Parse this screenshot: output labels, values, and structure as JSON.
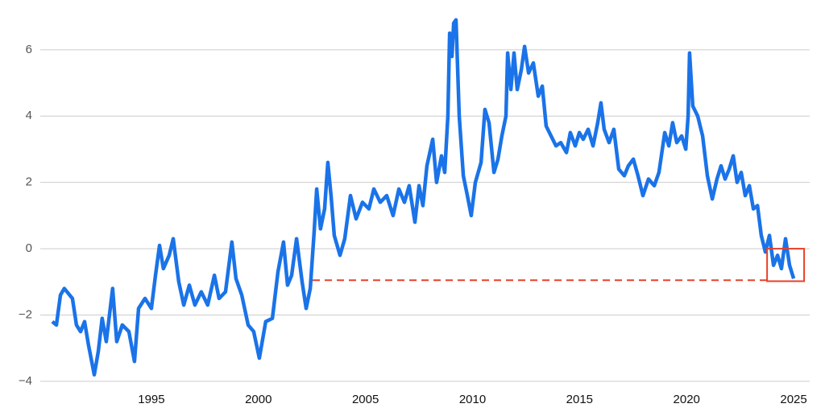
{
  "chart_data": {
    "type": "line",
    "x": [
      1990.37,
      1990.56,
      1990.75,
      1990.93,
      1991.31,
      1991.5,
      1991.69,
      1991.88,
      1992.06,
      1992.33,
      1992.52,
      1992.7,
      1992.89,
      1993.19,
      1993.38,
      1993.64,
      1993.95,
      1994.21,
      1994.4,
      1994.7,
      1995.0,
      1995.19,
      1995.38,
      1995.56,
      1995.83,
      1996.02,
      1996.28,
      1996.51,
      1996.77,
      1997.03,
      1997.33,
      1997.63,
      1997.94,
      1998.16,
      1998.46,
      1998.76,
      1998.95,
      1999.22,
      1999.52,
      1999.78,
      2000.04,
      2000.34,
      2000.65,
      2000.91,
      2001.17,
      2001.36,
      2001.55,
      2001.78,
      2002.04,
      2002.23,
      2002.42,
      2002.6,
      2002.72,
      2002.9,
      2003.09,
      2003.24,
      2003.39,
      2003.54,
      2003.81,
      2004.03,
      2004.3,
      2004.56,
      2004.86,
      2005.16,
      2005.39,
      2005.69,
      2005.99,
      2006.29,
      2006.56,
      2006.82,
      2007.04,
      2007.31,
      2007.5,
      2007.68,
      2007.87,
      2008.14,
      2008.32,
      2008.55,
      2008.7,
      2008.85,
      2008.93,
      2009.04,
      2009.12,
      2009.23,
      2009.38,
      2009.57,
      2009.76,
      2009.94,
      2010.13,
      2010.4,
      2010.58,
      2010.77,
      2011.0,
      2011.19,
      2011.37,
      2011.56,
      2011.64,
      2011.79,
      2011.94,
      2012.09,
      2012.28,
      2012.43,
      2012.62,
      2012.84,
      2013.07,
      2013.26,
      2013.44,
      2013.67,
      2013.9,
      2014.12,
      2014.39,
      2014.57,
      2014.8,
      2014.99,
      2015.17,
      2015.4,
      2015.63,
      2015.85,
      2016.0,
      2016.15,
      2016.38,
      2016.6,
      2016.83,
      2017.09,
      2017.28,
      2017.51,
      2017.73,
      2017.96,
      2018.22,
      2018.49,
      2018.71,
      2018.98,
      2019.17,
      2019.35,
      2019.54,
      2019.77,
      2019.96,
      2020.07,
      2020.14,
      2020.29,
      2020.52,
      2020.75,
      2020.97,
      2021.2,
      2021.42,
      2021.61,
      2021.8,
      2021.99,
      2022.18,
      2022.36,
      2022.55,
      2022.74,
      2022.93,
      2023.12,
      2023.31,
      2023.49,
      2023.68,
      2023.87,
      2024.06,
      2024.25,
      2024.43,
      2024.62,
      2024.81,
      2025.0
    ],
    "series": [
      {
        "color": "#1a73e8",
        "values": [
          -2.2,
          -2.3,
          -1.4,
          -1.2,
          -1.5,
          -2.3,
          -2.5,
          -2.2,
          -2.9,
          -3.8,
          -3.1,
          -2.1,
          -2.8,
          -1.2,
          -2.8,
          -2.3,
          -2.5,
          -3.4,
          -1.8,
          -1.5,
          -1.8,
          -0.8,
          0.1,
          -0.6,
          -0.2,
          0.3,
          -1.0,
          -1.7,
          -1.1,
          -1.7,
          -1.3,
          -1.7,
          -0.8,
          -1.5,
          -1.3,
          0.2,
          -0.9,
          -1.4,
          -2.3,
          -2.5,
          -3.3,
          -2.2,
          -2.1,
          -0.7,
          0.2,
          -1.1,
          -0.8,
          0.3,
          -1.0,
          -1.8,
          -1.2,
          0.5,
          1.8,
          0.6,
          1.2,
          2.6,
          1.6,
          0.4,
          -0.2,
          0.3,
          1.6,
          0.9,
          1.4,
          1.2,
          1.8,
          1.4,
          1.6,
          1.0,
          1.8,
          1.4,
          1.9,
          0.8,
          1.9,
          1.3,
          2.5,
          3.3,
          2.0,
          2.8,
          2.3,
          4.0,
          6.5,
          5.8,
          6.8,
          6.9,
          4.0,
          2.2,
          1.6,
          1.0,
          2.0,
          2.6,
          4.2,
          3.8,
          2.3,
          2.7,
          3.4,
          4.0,
          5.9,
          4.8,
          5.9,
          4.8,
          5.4,
          6.1,
          5.3,
          5.6,
          4.6,
          4.9,
          3.7,
          3.4,
          3.1,
          3.2,
          2.9,
          3.5,
          3.1,
          3.5,
          3.3,
          3.6,
          3.1,
          3.8,
          4.4,
          3.6,
          3.2,
          3.6,
          2.4,
          2.2,
          2.5,
          2.7,
          2.2,
          1.6,
          2.1,
          1.9,
          2.3,
          3.5,
          3.1,
          3.8,
          3.2,
          3.4,
          3.0,
          4.0,
          5.9,
          4.3,
          4.0,
          3.4,
          2.2,
          1.5,
          2.1,
          2.5,
          2.1,
          2.4,
          2.8,
          2.0,
          2.3,
          1.6,
          1.9,
          1.2,
          1.3,
          0.4,
          -0.1,
          0.4,
          -0.5,
          -0.2,
          -0.6,
          0.3,
          -0.5,
          -0.9
        ]
      }
    ],
    "reference_line": {
      "value": -0.95,
      "x": [
        2002.53,
        2023.76
      ],
      "color": "#e8402a"
    },
    "highlight_box": {
      "x": [
        2023.76,
        2025.49
      ],
      "y": [
        -0.98,
        0
      ],
      "color": "#e8402a"
    },
    "xlim": [
      1988.68,
      2025.75
    ],
    "ylim": [
      -4.39,
      7.5
    ],
    "xticks": [
      1995,
      2000,
      2005,
      2010,
      2015,
      2020,
      2025
    ],
    "yticks": [
      {
        "value": -4,
        "label": "−4"
      },
      {
        "value": -2,
        "label": "−2"
      },
      0,
      2,
      4,
      6
    ],
    "grid": true
  }
}
